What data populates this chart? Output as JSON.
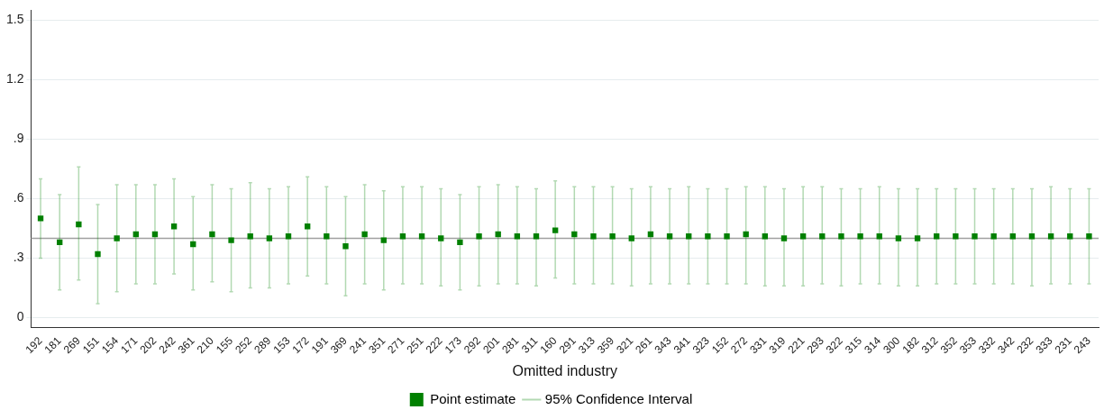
{
  "chart_data": {
    "type": "scatter",
    "xlabel": "Omitted industry",
    "categories": [
      "192",
      "181",
      "269",
      "151",
      "154",
      "171",
      "202",
      "242",
      "361",
      "210",
      "155",
      "252",
      "289",
      "153",
      "172",
      "191",
      "369",
      "241",
      "351",
      "271",
      "251",
      "222",
      "173",
      "292",
      "201",
      "281",
      "311",
      "160",
      "291",
      "313",
      "359",
      "321",
      "261",
      "343",
      "341",
      "323",
      "152",
      "272",
      "331",
      "319",
      "221",
      "293",
      "322",
      "315",
      "314",
      "300",
      "182",
      "312",
      "352",
      "353",
      "332",
      "342",
      "232",
      "333",
      "231",
      "243"
    ],
    "ylim": [
      -0.05,
      1.55
    ],
    "yticks": [
      {
        "value": 0,
        "label": "0"
      },
      {
        "value": 0.3,
        "label": ".3"
      },
      {
        "value": 0.6,
        "label": ".6"
      },
      {
        "value": 0.9,
        "label": ".9"
      },
      {
        "value": 1.2,
        "label": "1.2"
      },
      {
        "value": 1.5,
        "label": "1.5"
      }
    ],
    "grid": "y",
    "legend": "bottom",
    "marker": "square",
    "annotations": [
      "95% Confidence Interval"
    ],
    "ref_lines": [
      {
        "axis": "y",
        "value": 0.4,
        "color": "#a0a0a0"
      }
    ],
    "series": [
      {
        "name": "Point estimate",
        "color": "#008000",
        "values": [
          0.5,
          0.38,
          0.47,
          0.32,
          0.4,
          0.42,
          0.42,
          0.46,
          0.37,
          0.42,
          0.39,
          0.41,
          0.4,
          0.41,
          0.46,
          0.41,
          0.36,
          0.42,
          0.39,
          0.41,
          0.41,
          0.4,
          0.38,
          0.41,
          0.42,
          0.41,
          0.41,
          0.44,
          0.42,
          0.41,
          0.41,
          0.4,
          0.42,
          0.41,
          0.41,
          0.41,
          0.41,
          0.42,
          0.41,
          0.4,
          0.41,
          0.41,
          0.41,
          0.41,
          0.41,
          0.4,
          0.4,
          0.41,
          0.41,
          0.41,
          0.41,
          0.41,
          0.41,
          0.41,
          0.41,
          0.41
        ],
        "errors": [
          [
            0.3,
            0.7
          ],
          [
            0.14,
            0.62
          ],
          [
            0.19,
            0.76
          ],
          [
            0.07,
            0.57
          ],
          [
            0.13,
            0.67
          ],
          [
            0.17,
            0.67
          ],
          [
            0.17,
            0.67
          ],
          [
            0.22,
            0.7
          ],
          [
            0.14,
            0.61
          ],
          [
            0.18,
            0.67
          ],
          [
            0.13,
            0.65
          ],
          [
            0.15,
            0.68
          ],
          [
            0.15,
            0.65
          ],
          [
            0.17,
            0.66
          ],
          [
            0.21,
            0.71
          ],
          [
            0.17,
            0.66
          ],
          [
            0.11,
            0.61
          ],
          [
            0.17,
            0.67
          ],
          [
            0.14,
            0.64
          ],
          [
            0.17,
            0.66
          ],
          [
            0.17,
            0.66
          ],
          [
            0.16,
            0.65
          ],
          [
            0.14,
            0.62
          ],
          [
            0.16,
            0.66
          ],
          [
            0.17,
            0.67
          ],
          [
            0.17,
            0.66
          ],
          [
            0.16,
            0.65
          ],
          [
            0.2,
            0.69
          ],
          [
            0.17,
            0.66
          ],
          [
            0.17,
            0.66
          ],
          [
            0.17,
            0.66
          ],
          [
            0.16,
            0.65
          ],
          [
            0.17,
            0.66
          ],
          [
            0.17,
            0.65
          ],
          [
            0.17,
            0.66
          ],
          [
            0.17,
            0.65
          ],
          [
            0.17,
            0.65
          ],
          [
            0.17,
            0.66
          ],
          [
            0.16,
            0.66
          ],
          [
            0.16,
            0.65
          ],
          [
            0.16,
            0.66
          ],
          [
            0.17,
            0.66
          ],
          [
            0.16,
            0.65
          ],
          [
            0.17,
            0.65
          ],
          [
            0.17,
            0.66
          ],
          [
            0.16,
            0.65
          ],
          [
            0.16,
            0.65
          ],
          [
            0.17,
            0.65
          ],
          [
            0.17,
            0.65
          ],
          [
            0.17,
            0.65
          ],
          [
            0.17,
            0.65
          ],
          [
            0.17,
            0.65
          ],
          [
            0.16,
            0.65
          ],
          [
            0.17,
            0.66
          ],
          [
            0.17,
            0.65
          ],
          [
            0.17,
            0.65
          ]
        ]
      }
    ]
  }
}
